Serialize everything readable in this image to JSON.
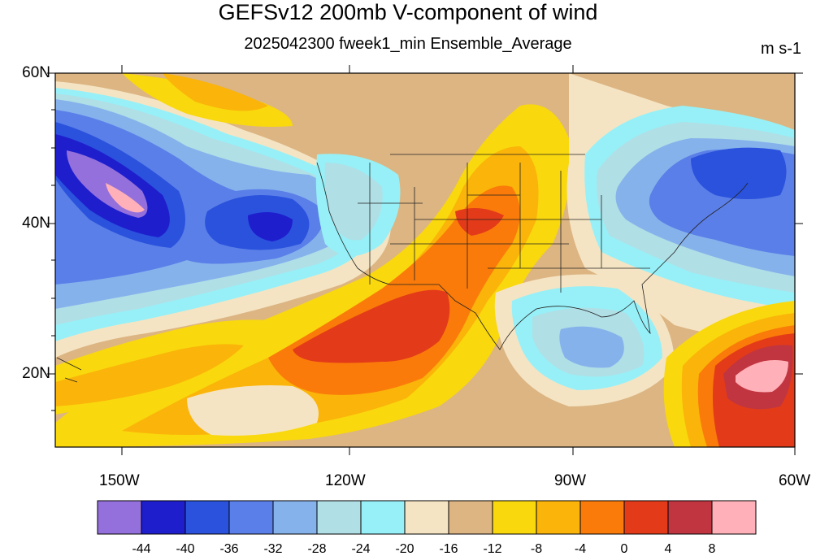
{
  "title": "GEFSv12 200mb V-component of wind",
  "subtitle": "2025042300 fweek1_min Ensemble_Average",
  "units": "m s-1",
  "lat_labels": [
    "60N",
    "40N",
    "20N"
  ],
  "lon_labels": [
    "150W",
    "120W",
    "90W",
    "60W"
  ],
  "colorbar": {
    "colors": [
      "#9370db",
      "#1e1ecd",
      "#2a52dd",
      "#5b7fe8",
      "#86b2ec",
      "#b0dfe6",
      "#97f0f7",
      "#f5e4c3",
      "#dcb583",
      "#f9d80d",
      "#fbb409",
      "#fa7b0a",
      "#e33b19",
      "#c03540",
      "#ffb0b8"
    ],
    "tick_labels": [
      "-44",
      "-40",
      "-36",
      "-32",
      "-28",
      "-24",
      "-20",
      "-16",
      "-12",
      "-8",
      "-4",
      "0",
      "4",
      "8"
    ]
  },
  "map": {
    "lon_range": [
      -161,
      -60
    ],
    "lat_range": [
      10,
      60
    ]
  }
}
